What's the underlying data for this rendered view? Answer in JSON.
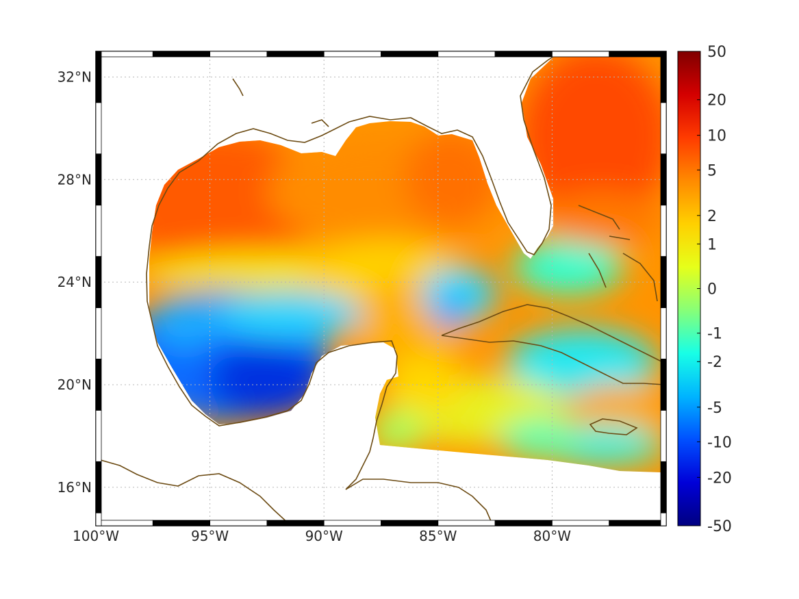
{
  "map": {
    "projection": "plate-carree",
    "lon_range": [
      -100,
      -75
    ],
    "lat_range": [
      14.5,
      33
    ],
    "lon_ticks": [
      {
        "value": -100,
        "label": "100°W"
      },
      {
        "value": -95,
        "label": "95°W"
      },
      {
        "value": -90,
        "label": "90°W"
      },
      {
        "value": -85,
        "label": "85°W"
      },
      {
        "value": -80,
        "label": "80°W"
      }
    ],
    "lat_ticks": [
      {
        "value": 32,
        "label": "32°N"
      },
      {
        "value": 28,
        "label": "28°N"
      },
      {
        "value": 24,
        "label": "24°N"
      },
      {
        "value": 20,
        "label": "20°N"
      },
      {
        "value": 16,
        "label": "16°N"
      }
    ],
    "grid": true,
    "coastline_color": "#6b4a12"
  },
  "colorbar": {
    "scale": "symmetric-log",
    "labels": [
      "50",
      "20",
      "10",
      "5",
      "2",
      "1",
      "0",
      "-1",
      "-2",
      "-5",
      "-10",
      "-20",
      "-50"
    ],
    "colors_top_to_bottom": [
      "#800000",
      "#d40000",
      "#ff3b00",
      "#ff8a00",
      "#ffd000",
      "#e6ff1a",
      "#88ff77",
      "#18ffe6",
      "#00b4ff",
      "#0050ff",
      "#0000d8",
      "#000080"
    ]
  },
  "field": {
    "description_values": "Ocean-region field values shown by color; northern Gulf ~5-10, Bay of Campeche ~-5 to -10, Caribbean ~-2 to 2, Atlantic off Florida ~10",
    "regions": [
      {
        "region": "northern-gulf",
        "value": 6
      },
      {
        "region": "bay-of-campeche",
        "value": -8
      },
      {
        "region": "yucatan-channel",
        "value": 2
      },
      {
        "region": "caribbean",
        "value": -1.5
      },
      {
        "region": "atlantic-east-of-florida",
        "value": 10
      }
    ]
  }
}
